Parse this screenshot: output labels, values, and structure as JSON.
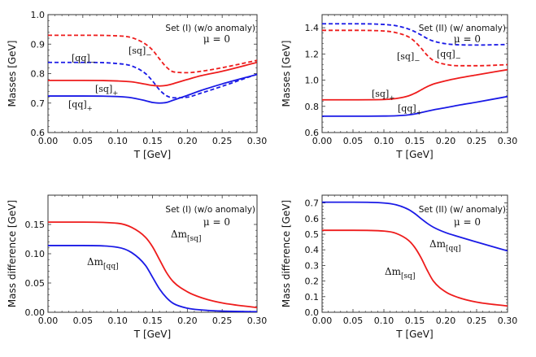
{
  "chart_data": [
    {
      "type": "line",
      "id": "p1",
      "xlabel": "T [GeV]",
      "ylabel": "Masses [GeV]",
      "xlim": [
        0,
        0.3
      ],
      "ylim": [
        0.6,
        1.0
      ],
      "xticks": [
        "0.00",
        "0.05",
        "0.10",
        "0.15",
        "0.20",
        "0.25",
        "0.30"
      ],
      "yticks": [
        "0.6",
        "0.7",
        "0.8",
        "0.9",
        "1.0"
      ],
      "annotations": [
        "Set (I) (w/o anomaly)",
        "μ = 0"
      ],
      "series": [
        {
          "name": "[sq]_-",
          "color": "#ee1c1c",
          "dashed": true,
          "x": [
            0,
            0.05,
            0.1,
            0.12,
            0.14,
            0.15,
            0.16,
            0.17,
            0.18,
            0.2,
            0.22,
            0.25,
            0.3
          ],
          "y": [
            0.93,
            0.93,
            0.928,
            0.922,
            0.9,
            0.88,
            0.85,
            0.822,
            0.806,
            0.803,
            0.808,
            0.82,
            0.845
          ]
        },
        {
          "name": "[qq]_-",
          "color": "#1a1ae6",
          "dashed": true,
          "x": [
            0,
            0.05,
            0.1,
            0.12,
            0.14,
            0.15,
            0.16,
            0.17,
            0.18,
            0.2,
            0.22,
            0.25,
            0.3
          ],
          "y": [
            0.838,
            0.838,
            0.834,
            0.826,
            0.8,
            0.775,
            0.745,
            0.725,
            0.718,
            0.72,
            0.734,
            0.757,
            0.798
          ]
        },
        {
          "name": "[sq]_+",
          "color": "#ee1c1c",
          "dashed": false,
          "x": [
            0,
            0.05,
            0.1,
            0.12,
            0.14,
            0.15,
            0.16,
            0.17,
            0.18,
            0.2,
            0.22,
            0.25,
            0.3
          ],
          "y": [
            0.777,
            0.777,
            0.775,
            0.772,
            0.764,
            0.76,
            0.758,
            0.76,
            0.766,
            0.78,
            0.793,
            0.808,
            0.838
          ]
        },
        {
          "name": "[qq]_+",
          "color": "#1a1ae6",
          "dashed": false,
          "x": [
            0,
            0.05,
            0.1,
            0.12,
            0.14,
            0.15,
            0.16,
            0.17,
            0.18,
            0.2,
            0.22,
            0.25,
            0.3
          ],
          "y": [
            0.724,
            0.724,
            0.722,
            0.718,
            0.708,
            0.702,
            0.7,
            0.702,
            0.71,
            0.726,
            0.743,
            0.765,
            0.797
          ]
        }
      ],
      "labels": [
        {
          "base": "[sq]",
          "sub": "−",
          "series": "[sq]_-"
        },
        {
          "base": "[qq]",
          "sub": "−",
          "series": "[qq]_-"
        },
        {
          "base": "[sq]",
          "sub": "+",
          "series": "[sq]_+"
        },
        {
          "base": "[qq]",
          "sub": "+",
          "series": "[qq]_+"
        }
      ]
    },
    {
      "type": "line",
      "id": "p2",
      "xlabel": "T [GeV]",
      "ylabel": "Masses [GeV]",
      "xlim": [
        0,
        0.3
      ],
      "ylim": [
        0.6,
        1.5
      ],
      "xticks": [
        "0.00",
        "0.05",
        "0.10",
        "0.15",
        "0.20",
        "0.25",
        "0.30"
      ],
      "yticks": [
        "0.6",
        "0.8",
        "1.0",
        "1.2",
        "1.4"
      ],
      "annotations": [
        "Set (II) (w/ anomaly)",
        "μ = 0"
      ],
      "series": [
        {
          "name": "[qq]_-",
          "color": "#1a1ae6",
          "dashed": true,
          "x": [
            0,
            0.05,
            0.1,
            0.12,
            0.14,
            0.15,
            0.16,
            0.17,
            0.18,
            0.2,
            0.22,
            0.25,
            0.3
          ],
          "y": [
            1.43,
            1.43,
            1.425,
            1.415,
            1.39,
            1.37,
            1.345,
            1.318,
            1.298,
            1.278,
            1.27,
            1.268,
            1.272
          ]
        },
        {
          "name": "[sq]_-",
          "color": "#ee1c1c",
          "dashed": true,
          "x": [
            0,
            0.05,
            0.1,
            0.12,
            0.14,
            0.15,
            0.16,
            0.17,
            0.18,
            0.2,
            0.22,
            0.25,
            0.3
          ],
          "y": [
            1.38,
            1.38,
            1.375,
            1.362,
            1.33,
            1.295,
            1.245,
            1.19,
            1.15,
            1.12,
            1.11,
            1.11,
            1.118
          ]
        },
        {
          "name": "[sq]_+",
          "color": "#ee1c1c",
          "dashed": false,
          "x": [
            0,
            0.05,
            0.1,
            0.12,
            0.14,
            0.15,
            0.16,
            0.17,
            0.18,
            0.2,
            0.22,
            0.25,
            0.3
          ],
          "y": [
            0.85,
            0.85,
            0.852,
            0.86,
            0.88,
            0.9,
            0.925,
            0.95,
            0.97,
            0.995,
            1.015,
            1.04,
            1.08
          ]
        },
        {
          "name": "[qq]_+",
          "color": "#1a1ae6",
          "dashed": false,
          "x": [
            0,
            0.05,
            0.1,
            0.12,
            0.14,
            0.15,
            0.16,
            0.17,
            0.18,
            0.2,
            0.22,
            0.25,
            0.3
          ],
          "y": [
            0.725,
            0.725,
            0.726,
            0.728,
            0.735,
            0.742,
            0.752,
            0.763,
            0.773,
            0.79,
            0.808,
            0.832,
            0.875
          ]
        }
      ],
      "labels": [
        {
          "base": "[qq]",
          "sub": "−",
          "series": "[qq]_-"
        },
        {
          "base": "[sq]",
          "sub": "−",
          "series": "[sq]_-"
        },
        {
          "base": "[sq]",
          "sub": "+",
          "series": "[sq]_+"
        },
        {
          "base": "[qq]",
          "sub": "+",
          "series": "[qq]_+"
        }
      ]
    },
    {
      "type": "line",
      "id": "p3",
      "xlabel": "T [GeV]",
      "ylabel": "Mass difference [GeV]",
      "xlim": [
        0,
        0.3
      ],
      "ylim": [
        0,
        0.2
      ],
      "xticks": [
        "0.00",
        "0.05",
        "0.10",
        "0.15",
        "0.20",
        "0.25",
        "0.30"
      ],
      "yticks": [
        "0.00",
        "0.05",
        "0.10",
        "0.15"
      ],
      "annotations": [
        "Set (I) (w/o anomaly)",
        "μ = 0"
      ],
      "series": [
        {
          "name": "Δm_[sq]",
          "color": "#ee1c1c",
          "dashed": false,
          "x": [
            0,
            0.05,
            0.1,
            0.12,
            0.14,
            0.15,
            0.16,
            0.17,
            0.18,
            0.2,
            0.22,
            0.25,
            0.3
          ],
          "y": [
            0.154,
            0.154,
            0.152,
            0.145,
            0.128,
            0.112,
            0.09,
            0.068,
            0.052,
            0.035,
            0.025,
            0.016,
            0.008
          ]
        },
        {
          "name": "Δm_[qq]",
          "color": "#1a1ae6",
          "dashed": false,
          "x": [
            0,
            0.05,
            0.1,
            0.12,
            0.14,
            0.15,
            0.16,
            0.17,
            0.18,
            0.2,
            0.22,
            0.25,
            0.3
          ],
          "y": [
            0.114,
            0.114,
            0.111,
            0.102,
            0.08,
            0.06,
            0.04,
            0.025,
            0.015,
            0.007,
            0.004,
            0.002,
            0.001
          ]
        }
      ],
      "labels": [
        {
          "base": "Δm",
          "sub": "[sq]",
          "series": "Δm_[sq]"
        },
        {
          "base": "Δm",
          "sub": "[qq]",
          "series": "Δm_[qq]"
        }
      ]
    },
    {
      "type": "line",
      "id": "p4",
      "xlabel": "T [GeV]",
      "ylabel": "Mass difference [GeV]",
      "xlim": [
        0,
        0.3
      ],
      "ylim": [
        0,
        0.75
      ],
      "xticks": [
        "0.00",
        "0.05",
        "0.10",
        "0.15",
        "0.20",
        "0.25",
        "0.30"
      ],
      "yticks": [
        "0.0",
        "0.1",
        "0.2",
        "0.3",
        "0.4",
        "0.5",
        "0.6",
        "0.7"
      ],
      "annotations": [
        "Set (II) (w/ anomaly)",
        "μ = 0"
      ],
      "series": [
        {
          "name": "Δm_[qq]",
          "color": "#1a1ae6",
          "dashed": false,
          "x": [
            0,
            0.05,
            0.1,
            0.12,
            0.14,
            0.15,
            0.16,
            0.17,
            0.18,
            0.2,
            0.22,
            0.25,
            0.3
          ],
          "y": [
            0.705,
            0.705,
            0.7,
            0.688,
            0.658,
            0.632,
            0.6,
            0.57,
            0.545,
            0.51,
            0.485,
            0.45,
            0.393
          ]
        },
        {
          "name": "Δm_[sq]",
          "color": "#ee1c1c",
          "dashed": false,
          "x": [
            0,
            0.05,
            0.1,
            0.12,
            0.14,
            0.15,
            0.16,
            0.17,
            0.18,
            0.2,
            0.22,
            0.25,
            0.3
          ],
          "y": [
            0.525,
            0.525,
            0.52,
            0.505,
            0.46,
            0.415,
            0.35,
            0.27,
            0.2,
            0.13,
            0.095,
            0.065,
            0.04
          ]
        }
      ],
      "labels": [
        {
          "base": "Δm",
          "sub": "[qq]",
          "series": "Δm_[qq]"
        },
        {
          "base": "Δm",
          "sub": "[sq]",
          "series": "Δm_[sq]"
        }
      ]
    }
  ]
}
